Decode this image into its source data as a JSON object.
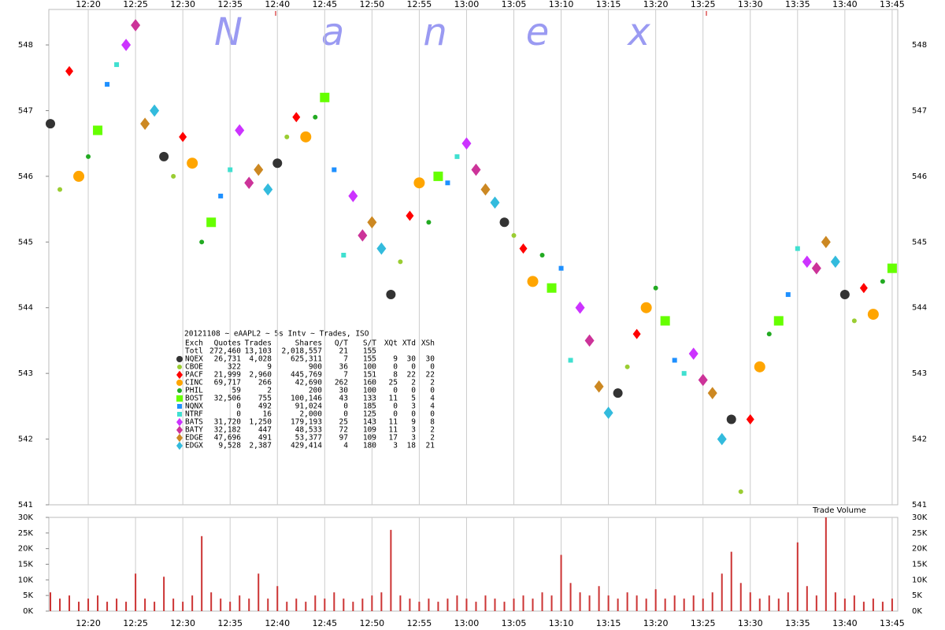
{
  "chart_data": {
    "type": "scatter",
    "title": "Nanex",
    "subtitle": "20121108 ~ eAAPL2 ~ 5s Intv ~ Trades, ISO",
    "xlim": [
      "12:15",
      "13:46"
    ],
    "xticks": [
      "12:20",
      "12:25",
      "12:30",
      "12:35",
      "12:40",
      "12:45",
      "12:50",
      "12:55",
      "13:00",
      "13:05",
      "13:10",
      "13:15",
      "13:20",
      "13:25",
      "13:30",
      "13:35",
      "13:40",
      "13:45"
    ],
    "ylim": [
      541,
      548.54
    ],
    "yticks": [
      541,
      542,
      543,
      544,
      545,
      546,
      547,
      548
    ],
    "grid": true,
    "table_header": [
      "Exch",
      "Quotes",
      "Trades",
      "Shares",
      "Q/T",
      "S/T",
      "XQt",
      "XTd",
      "XSh"
    ],
    "total": {
      "name": "Totl",
      "stats": [
        "272,460",
        "13,103",
        "2,018,557",
        "21",
        "155"
      ]
    },
    "series": [
      {
        "name": "NQEX",
        "color": "#333333",
        "marker": "circle",
        "size": 6,
        "stats": [
          "26,731",
          "4,028",
          "625,311",
          "7",
          "155",
          "9",
          "30",
          "30"
        ],
        "x": [
          "12:16",
          "12:28",
          "12:40",
          "12:52",
          "13:04",
          "13:16",
          "13:28",
          "13:40"
        ],
        "values": [
          546.8,
          546.3,
          546.2,
          544.2,
          545.3,
          542.7,
          542.3,
          544.2
        ]
      },
      {
        "name": "CBOE",
        "color": "#9acd32",
        "marker": "circle",
        "size": 3,
        "stats": [
          "322",
          "9",
          "900",
          "36",
          "100",
          "0",
          "0",
          "0"
        ],
        "x": [
          "12:17",
          "12:29",
          "12:41",
          "12:53",
          "13:05",
          "13:17",
          "13:29",
          "13:41"
        ],
        "values": [
          545.8,
          546.0,
          546.6,
          544.7,
          545.1,
          543.1,
          541.2,
          543.8
        ]
      },
      {
        "name": "PACF",
        "color": "#ff0000",
        "marker": "diamond",
        "size": 5,
        "stats": [
          "21,999",
          "2,960",
          "445,769",
          "7",
          "151",
          "8",
          "22",
          "22"
        ],
        "x": [
          "12:18",
          "12:30",
          "12:42",
          "12:54",
          "13:06",
          "13:18",
          "13:30",
          "13:42"
        ],
        "values": [
          547.6,
          546.6,
          546.9,
          545.4,
          544.9,
          543.6,
          542.3,
          544.3
        ]
      },
      {
        "name": "CINC",
        "color": "#ffa500",
        "marker": "circle",
        "size": 7,
        "stats": [
          "69,717",
          "266",
          "42,690",
          "262",
          "160",
          "25",
          "2",
          "2"
        ],
        "x": [
          "12:19",
          "12:31",
          "12:43",
          "12:55",
          "13:07",
          "13:19",
          "13:31",
          "13:43"
        ],
        "values": [
          546.0,
          546.2,
          546.6,
          545.9,
          544.4,
          544.0,
          543.1,
          543.9
        ]
      },
      {
        "name": "PHIL",
        "color": "#22aa22",
        "marker": "circle",
        "size": 3,
        "stats": [
          "59",
          "2",
          "200",
          "30",
          "100",
          "0",
          "0",
          "0"
        ],
        "x": [
          "12:20",
          "12:32",
          "12:44",
          "12:56",
          "13:08",
          "13:20",
          "13:32",
          "13:44"
        ],
        "values": [
          546.3,
          545.0,
          546.9,
          545.3,
          544.8,
          544.3,
          543.6,
          544.4
        ]
      },
      {
        "name": "BOST",
        "color": "#66ff00",
        "marker": "square",
        "size": 6,
        "stats": [
          "32,506",
          "755",
          "100,146",
          "43",
          "133",
          "11",
          "5",
          "4"
        ],
        "x": [
          "12:21",
          "12:33",
          "12:45",
          "12:57",
          "13:09",
          "13:21",
          "13:33",
          "13:45"
        ],
        "values": [
          546.7,
          545.3,
          547.2,
          546.0,
          544.3,
          543.8,
          543.8,
          544.6
        ]
      },
      {
        "name": "NQNX",
        "color": "#1e90ff",
        "marker": "square",
        "size": 3,
        "stats": [
          "0",
          "492",
          "91,024",
          "0",
          "185",
          "0",
          "3",
          "4"
        ],
        "x": [
          "12:22",
          "12:34",
          "12:46",
          "12:58",
          "13:10",
          "13:22",
          "13:34"
        ],
        "values": [
          547.4,
          545.7,
          546.1,
          545.9,
          544.6,
          543.2,
          544.2
        ]
      },
      {
        "name": "NTRF",
        "color": "#40e0d0",
        "marker": "square",
        "size": 3,
        "stats": [
          "0",
          "16",
          "2,000",
          "0",
          "125",
          "0",
          "0",
          "0"
        ],
        "x": [
          "12:23",
          "12:35",
          "12:47",
          "12:59",
          "13:11",
          "13:23",
          "13:35"
        ],
        "values": [
          547.7,
          546.1,
          544.8,
          546.3,
          543.2,
          543.0,
          544.9
        ]
      },
      {
        "name": "BATS",
        "color": "#cc33ff",
        "marker": "diamond",
        "size": 6,
        "stats": [
          "31,720",
          "1,250",
          "179,193",
          "25",
          "143",
          "11",
          "9",
          "8"
        ],
        "x": [
          "12:24",
          "12:36",
          "12:48",
          "13:00",
          "13:12",
          "13:24",
          "13:36"
        ],
        "values": [
          548.0,
          546.7,
          545.7,
          546.5,
          544.0,
          543.3,
          544.7
        ]
      },
      {
        "name": "BATY",
        "color": "#cc3399",
        "marker": "diamond",
        "size": 6,
        "stats": [
          "32,182",
          "447",
          "48,533",
          "72",
          "109",
          "11",
          "3",
          "2"
        ],
        "x": [
          "12:25",
          "12:37",
          "12:49",
          "13:01",
          "13:13",
          "13:25",
          "13:37"
        ],
        "values": [
          548.3,
          545.9,
          545.1,
          546.1,
          543.5,
          542.9,
          544.6
        ]
      },
      {
        "name": "EDGE",
        "color": "#cc8822",
        "marker": "diamond",
        "size": 6,
        "stats": [
          "47,696",
          "491",
          "53,377",
          "97",
          "109",
          "17",
          "3",
          "2"
        ],
        "x": [
          "12:26",
          "12:38",
          "12:50",
          "13:02",
          "13:14",
          "13:26",
          "13:38"
        ],
        "values": [
          546.8,
          546.1,
          545.3,
          545.8,
          542.8,
          542.7,
          545.0
        ]
      },
      {
        "name": "EDGX",
        "color": "#33bbdd",
        "marker": "diamond",
        "size": 6,
        "stats": [
          "9,528",
          "2,387",
          "429,414",
          "4",
          "180",
          "3",
          "18",
          "21"
        ],
        "x": [
          "12:27",
          "12:39",
          "12:51",
          "13:03",
          "13:15",
          "13:27",
          "13:39"
        ],
        "values": [
          547.0,
          545.8,
          544.9,
          545.6,
          542.4,
          542.0,
          544.7
        ]
      }
    ],
    "volume": {
      "title": "Trade Volume",
      "color": "#cc3333",
      "ylim": [
        0,
        30000
      ],
      "yticks": [
        {
          "value": 0,
          "label": "0K"
        },
        {
          "value": 5000,
          "label": "5K"
        },
        {
          "value": 10000,
          "label": "10K"
        },
        {
          "value": 15000,
          "label": "15K"
        },
        {
          "value": 20000,
          "label": "20K"
        },
        {
          "value": 25000,
          "label": "25K"
        },
        {
          "value": 30000,
          "label": "30K"
        }
      ],
      "x": [
        "12:16",
        "12:17",
        "12:18",
        "12:19",
        "12:20",
        "12:21",
        "12:22",
        "12:23",
        "12:24",
        "12:25",
        "12:26",
        "12:27",
        "12:28",
        "12:29",
        "12:30",
        "12:31",
        "12:32",
        "12:33",
        "12:34",
        "12:35",
        "12:36",
        "12:37",
        "12:38",
        "12:39",
        "12:40",
        "12:41",
        "12:42",
        "12:43",
        "12:44",
        "12:45",
        "12:46",
        "12:47",
        "12:48",
        "12:49",
        "12:50",
        "12:51",
        "12:52",
        "12:53",
        "12:54",
        "12:55",
        "12:56",
        "12:57",
        "12:58",
        "12:59",
        "13:00",
        "13:01",
        "13:02",
        "13:03",
        "13:04",
        "13:05",
        "13:06",
        "13:07",
        "13:08",
        "13:09",
        "13:10",
        "13:11",
        "13:12",
        "13:13",
        "13:14",
        "13:15",
        "13:16",
        "13:17",
        "13:18",
        "13:19",
        "13:20",
        "13:21",
        "13:22",
        "13:23",
        "13:24",
        "13:25",
        "13:26",
        "13:27",
        "13:28",
        "13:29",
        "13:30",
        "13:31",
        "13:32",
        "13:33",
        "13:34",
        "13:35",
        "13:36",
        "13:37",
        "13:38",
        "13:39",
        "13:40",
        "13:41",
        "13:42",
        "13:43",
        "13:44",
        "13:45"
      ],
      "values": [
        6000,
        4000,
        5000,
        3000,
        4000,
        5000,
        3000,
        4000,
        3000,
        12000,
        4000,
        3000,
        11000,
        4000,
        3000,
        5000,
        24000,
        6000,
        4000,
        3000,
        5000,
        4000,
        12000,
        4000,
        8000,
        3000,
        4000,
        3000,
        5000,
        4000,
        6000,
        4000,
        3000,
        4000,
        5000,
        6000,
        26000,
        5000,
        4000,
        3000,
        4000,
        3000,
        4000,
        5000,
        4000,
        3000,
        5000,
        4000,
        3000,
        4000,
        5000,
        4000,
        6000,
        5000,
        18000,
        9000,
        6000,
        5000,
        8000,
        5000,
        4000,
        6000,
        5000,
        4000,
        7000,
        4000,
        5000,
        4000,
        5000,
        4000,
        6000,
        12000,
        19000,
        9000,
        6000,
        4000,
        5000,
        4000,
        6000,
        22000,
        8000,
        5000,
        30000,
        6000,
        4000,
        5000,
        3000,
        4000,
        3000,
        4000
      ]
    }
  }
}
